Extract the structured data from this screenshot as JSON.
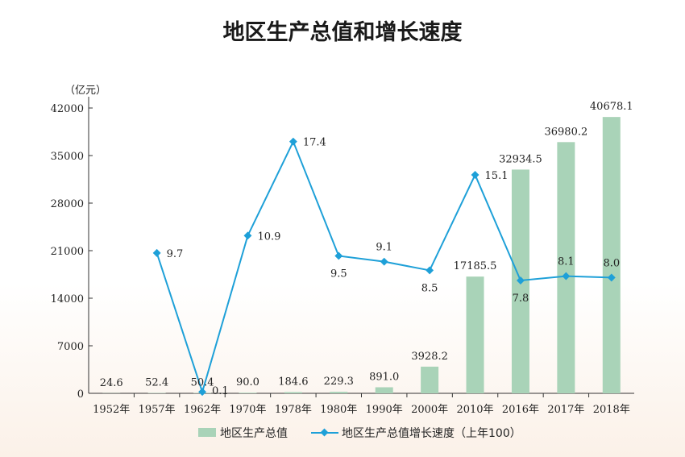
{
  "chart_data": {
    "type": "bar+line",
    "title": "地区生产总值和增长速度",
    "y_unit": "（亿元）",
    "ylim": [
      0,
      42000
    ],
    "yticks": [
      "0",
      "7000",
      "14000",
      "21000",
      "28000",
      "35000",
      "42000"
    ],
    "categories": [
      "1952年",
      "1957年",
      "1962年",
      "1970年",
      "1978年",
      "1980年",
      "1990年",
      "2000年",
      "2010年",
      "2016年",
      "2017年",
      "2018年"
    ],
    "series": [
      {
        "name": "地区生产总值",
        "type": "bar",
        "color": "#a9d3b8",
        "values": [
          24.6,
          52.4,
          50.4,
          90.0,
          184.6,
          229.3,
          891.0,
          3928.2,
          17185.5,
          32934.5,
          36980.2,
          40678.1
        ],
        "labels": [
          "24.6",
          "52.4",
          "50.4",
          "90.0",
          "184.6",
          "229.3",
          "891.0",
          "3928.2",
          "17185.5",
          "32934.5",
          "36980.2",
          "40678.1"
        ]
      },
      {
        "name": "地区生产总值增长速度（上年100）",
        "type": "line",
        "color": "#1ea0d8",
        "values": [
          null,
          9.7,
          0.1,
          10.9,
          17.4,
          9.5,
          9.1,
          8.5,
          15.1,
          7.8,
          8.1,
          8.0
        ],
        "labels": [
          "",
          "9.7",
          "0.1",
          "10.9",
          "17.4",
          "9.5",
          "9.1",
          "8.5",
          "15.1",
          "7.8",
          "8.1",
          "8.0"
        ]
      }
    ],
    "legend_position": "bottom-center",
    "grid": false
  }
}
